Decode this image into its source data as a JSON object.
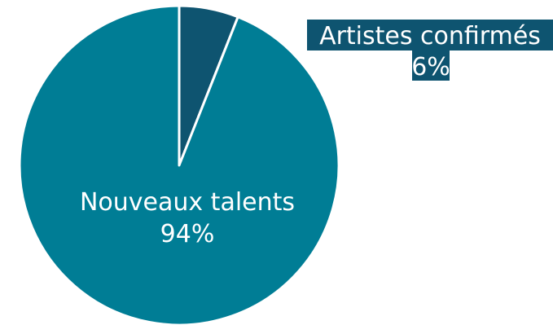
{
  "chart_data": {
    "type": "pie",
    "categories": [
      "Artistes confirmés",
      "Nouveaux talents"
    ],
    "values": [
      6,
      94
    ],
    "value_labels": [
      "6%",
      "94%"
    ],
    "colors": [
      "#0e5470",
      "#007d95"
    ],
    "slice_border_color": "#ffffff",
    "legend": "none"
  }
}
